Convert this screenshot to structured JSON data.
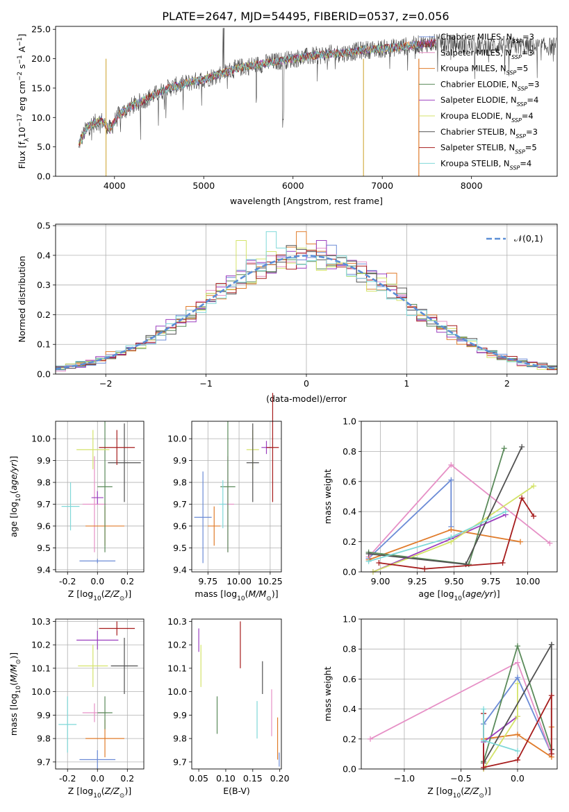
{
  "figure": {
    "title": "PLATE=2647, MJD=54495, FIBERID=0537, z=0.056",
    "colors": {
      "Chabrier MILES": "#6b8bd6",
      "Salpeter MILES": "#e690c6",
      "Kroupa MILES": "#e07b2a",
      "Chabrier ELODIE": "#5a8a5a",
      "Salpeter ELODIE": "#9b3fbf",
      "Kroupa ELODIE": "#d4e36a",
      "Chabrier STELIB": "#505050",
      "Salpeter STELIB": "#a61c1c",
      "Kroupa STELIB": "#7fd8d8"
    }
  },
  "chart_data": [
    {
      "id": "spectrum",
      "type": "line",
      "xlabel": "wavelength [Angstrom, rest frame]",
      "ylabel": "Flux [f_λ10^-17 erg cm^-2 s^-1 A^-1]",
      "xlim": [
        3340,
        8960
      ],
      "ylim": [
        0,
        25.5
      ],
      "xticks": [
        4000,
        5000,
        6000,
        7000,
        8000
      ],
      "yticks": [
        0,
        5,
        10,
        15,
        20,
        25
      ],
      "grid": false,
      "legend_placement": "top-right",
      "legend": [
        {
          "model": "Chabrier MILES",
          "nssp": "3"
        },
        {
          "model": "Salpeter MILES",
          "nssp": "3"
        },
        {
          "model": "Kroupa MILES",
          "nssp": "5"
        },
        {
          "model": "Chabrier ELODIE",
          "nssp": "3"
        },
        {
          "model": "Salpeter ELODIE",
          "nssp": "4"
        },
        {
          "model": "Kroupa ELODIE",
          "nssp": "4"
        },
        {
          "model": "Chabrier STELIB",
          "nssp": "3"
        },
        {
          "model": "Salpeter STELIB",
          "nssp": "5"
        },
        {
          "model": "Kroupa STELIB",
          "nssp": "4"
        }
      ],
      "continuum": [
        [
          3600,
          5.5
        ],
        [
          3700,
          8.5
        ],
        [
          3850,
          9.5
        ],
        [
          3950,
          8.0
        ],
        [
          4050,
          10.5
        ],
        [
          4200,
          12.0
        ],
        [
          4400,
          13.5
        ],
        [
          4600,
          15.0
        ],
        [
          4800,
          15.8
        ],
        [
          5000,
          16.5
        ],
        [
          5200,
          17.5
        ],
        [
          5400,
          18.5
        ],
        [
          5600,
          19.0
        ],
        [
          5800,
          19.5
        ],
        [
          6000,
          20.0
        ],
        [
          6200,
          20.4
        ],
        [
          6400,
          20.8
        ],
        [
          6600,
          21.0
        ],
        [
          6800,
          21.5
        ],
        [
          7000,
          21.7
        ],
        [
          7200,
          22.0
        ],
        [
          7400,
          22.4
        ],
        [
          7600,
          22.7
        ],
        [
          7800,
          22.5
        ],
        [
          8000,
          22.2
        ],
        [
          8200,
          22.2
        ],
        [
          8400,
          22.3
        ],
        [
          8700,
          22.0
        ],
        [
          8950,
          22.1
        ]
      ]
    },
    {
      "id": "residual-histogram",
      "type": "line",
      "xlabel": "(data-model)/error",
      "ylabel": "Normed distribution",
      "xlim": [
        -2.5,
        2.5
      ],
      "ylim": [
        0,
        0.505
      ],
      "xticks": [
        -2,
        -1,
        0,
        1,
        2
      ],
      "yticks": [
        0.0,
        0.1,
        0.2,
        0.3,
        0.4,
        0.5
      ],
      "grid": true,
      "legend_placement": "top-right",
      "legend": "𝒩(0,1)",
      "gaussian": {
        "mean": 0,
        "sigma": 1,
        "color": "#5b8ed6"
      },
      "bin_width": 0.1,
      "spiky_bins": {
        "-0.65": 0.45,
        "-0.35": 0.48,
        "-0.05": 0.48,
        "0.15": 0.45,
        "0.85": 0.34
      }
    },
    {
      "id": "age-vs-Z",
      "type": "scatter",
      "xlabel": "Z [log10(Z/Z⊙)]",
      "ylabel": "age  [log10(age/yr)]",
      "xlim": [
        -0.28,
        0.31
      ],
      "ylim": [
        9.39,
        10.08
      ],
      "xticks": [
        "-0.2",
        "0.0",
        "0.2"
      ],
      "xtick_values": [
        -0.2,
        0.0,
        0.2
      ],
      "yticks": [
        "9.4",
        "9.5",
        "9.6",
        "9.7",
        "9.8",
        "9.9",
        "10.0"
      ],
      "ytick_values": [
        9.4,
        9.5,
        9.6,
        9.7,
        9.8,
        9.9,
        10.0
      ],
      "grid": true,
      "points": [
        {
          "model": "Chabrier MILES",
          "x": 0.0,
          "xerr": 0.12,
          "y": 9.44,
          "yerr": 0.01
        },
        {
          "model": "Salpeter MILES",
          "x": -0.02,
          "xerr": 0.08,
          "y": 9.7,
          "yerr": 0.22
        },
        {
          "model": "Kroupa MILES",
          "x": 0.05,
          "xerr": 0.13,
          "y": 9.6,
          "yerr": 0.09
        },
        {
          "model": "Chabrier ELODIE",
          "x": 0.05,
          "xerr": 0.05,
          "y": 9.78,
          "yerr": 0.3
        },
        {
          "model": "Salpeter ELODIE",
          "x": 0.0,
          "xerr": 0.04,
          "y": 9.73,
          "yerr": 0.03
        },
        {
          "model": "Kroupa ELODIE",
          "x": -0.03,
          "xerr": 0.11,
          "y": 9.95,
          "yerr": 0.09
        },
        {
          "model": "Chabrier STELIB",
          "x": 0.18,
          "xerr": 0.11,
          "y": 9.89,
          "yerr": 0.18
        },
        {
          "model": "Salpeter STELIB",
          "x": 0.13,
          "xerr": 0.12,
          "y": 9.96,
          "yerr": 0.08
        },
        {
          "model": "Kroupa STELIB",
          "x": -0.18,
          "xerr": 0.06,
          "y": 9.69,
          "yerr": 0.11
        }
      ]
    },
    {
      "id": "age-vs-mass",
      "type": "scatter",
      "xlabel": "mass [log10(M/M⊙)]",
      "ylabel": "",
      "xlim": [
        9.62,
        10.34
      ],
      "ylim": [
        9.39,
        10.08
      ],
      "xticks": [
        "9.75",
        "10.00",
        "10.25"
      ],
      "xtick_values": [
        9.75,
        10.0,
        10.25
      ],
      "yticks": [
        "9.4",
        "9.5",
        "9.6",
        "9.7",
        "9.8",
        "9.9",
        "10.0"
      ],
      "ytick_values": [
        9.4,
        9.5,
        9.6,
        9.7,
        9.8,
        9.9,
        10.0
      ],
      "grid": true,
      "points": [
        {
          "model": "Chabrier MILES",
          "x": 9.71,
          "xerr": 0.07,
          "y": 9.64,
          "yerr": 0.21
        },
        {
          "model": "Salpeter MILES",
          "x": 9.91,
          "xerr": 0.05,
          "y": 9.7,
          "yerr": 0.22
        },
        {
          "model": "Kroupa MILES",
          "x": 9.8,
          "xerr": 0.05,
          "y": 9.6,
          "yerr": 0.09
        },
        {
          "model": "Chabrier ELODIE",
          "x": 9.91,
          "xerr": 0.06,
          "y": 9.78,
          "yerr": 0.3
        },
        {
          "model": "Salpeter ELODIE",
          "x": 10.22,
          "xerr": 0.04,
          "y": 9.96,
          "yerr": 0.03
        },
        {
          "model": "Kroupa ELODIE",
          "x": 10.11,
          "xerr": 0.05,
          "y": 9.95,
          "yerr": 0.09
        },
        {
          "model": "Chabrier STELIB",
          "x": 10.11,
          "xerr": 0.05,
          "y": 9.89,
          "yerr": 0.18
        },
        {
          "model": "Salpeter STELIB",
          "x": 10.27,
          "xerr": 0.05,
          "y": 9.96,
          "yerr": 0.25
        },
        {
          "model": "Kroupa STELIB",
          "x": 9.87,
          "xerr": 0.03,
          "y": 9.7,
          "yerr": 0.11
        }
      ]
    },
    {
      "id": "weight-vs-age",
      "type": "line",
      "xlabel": "age  [log10(age/yr)]",
      "ylabel": "mass weight",
      "xlim": [
        8.87,
        10.2
      ],
      "ylim": [
        0,
        1.0
      ],
      "xticks": [
        "9.00",
        "9.25",
        "9.50",
        "9.75",
        "10.00"
      ],
      "xtick_values": [
        9.0,
        9.25,
        9.5,
        9.75,
        10.0
      ],
      "yticks": [
        "0.0",
        "0.2",
        "0.4",
        "0.6",
        "0.8",
        "1.0"
      ],
      "ytick_values": [
        0.0,
        0.2,
        0.4,
        0.6,
        0.8,
        1.0
      ],
      "grid": true,
      "series": [
        {
          "model": "Chabrier MILES",
          "x": [
            8.92,
            9.48,
            9.48
          ],
          "y": [
            0.09,
            0.61,
            0.3
          ]
        },
        {
          "model": "Salpeter MILES",
          "x": [
            8.92,
            9.48,
            10.15
          ],
          "y": [
            0.1,
            0.71,
            0.19
          ]
        },
        {
          "model": "Kroupa MILES",
          "x": [
            8.92,
            9.48,
            9.95
          ],
          "y": [
            0.08,
            0.28,
            0.2
          ]
        },
        {
          "model": "Chabrier ELODIE",
          "x": [
            8.92,
            9.6,
            9.84
          ],
          "y": [
            0.13,
            0.05,
            0.82
          ]
        },
        {
          "model": "Salpeter ELODIE",
          "x": [
            8.95,
            9.48,
            9.85
          ],
          "y": [
            0.0,
            0.22,
            0.38
          ]
        },
        {
          "model": "Kroupa ELODIE",
          "x": [
            8.95,
            9.48,
            10.04
          ],
          "y": [
            0.0,
            0.2,
            0.57
          ]
        },
        {
          "model": "Chabrier STELIB",
          "x": [
            8.92,
            9.58,
            9.96
          ],
          "y": [
            0.12,
            0.05,
            0.83
          ]
        },
        {
          "model": "Salpeter STELIB",
          "x": [
            8.99,
            9.3,
            9.83,
            9.96,
            10.04
          ],
          "y": [
            0.06,
            0.02,
            0.06,
            0.49,
            0.37
          ]
        },
        {
          "model": "Kroupa STELIB",
          "x": [
            8.92,
            9.48,
            9.85
          ],
          "y": [
            0.07,
            0.23,
            0.4
          ]
        }
      ]
    },
    {
      "id": "mass-vs-Z",
      "type": "scatter",
      "xlabel": "Z [log10(Z/Z⊙)]",
      "ylabel": "mass [log10(M/M⊙)]",
      "xlim": [
        -0.28,
        0.31
      ],
      "ylim": [
        9.67,
        10.31
      ],
      "xticks": [
        "-0.2",
        "0.0",
        "0.2"
      ],
      "xtick_values": [
        -0.2,
        0.0,
        0.2
      ],
      "yticks": [
        "9.7",
        "9.8",
        "9.9",
        "10.0",
        "10.1",
        "10.2",
        "10.3"
      ],
      "ytick_values": [
        9.7,
        9.8,
        9.9,
        10.0,
        10.1,
        10.2,
        10.3
      ],
      "grid": true,
      "points": [
        {
          "model": "Chabrier MILES",
          "x": 0.0,
          "xerr": 0.12,
          "y": 9.71,
          "yerr": 0.04
        },
        {
          "model": "Salpeter MILES",
          "x": -0.02,
          "xerr": 0.08,
          "y": 9.91,
          "yerr": 0.04
        },
        {
          "model": "Kroupa MILES",
          "x": 0.05,
          "xerr": 0.13,
          "y": 9.8,
          "yerr": 0.08
        },
        {
          "model": "Chabrier ELODIE",
          "x": 0.05,
          "xerr": 0.05,
          "y": 9.91,
          "yerr": 0.07
        },
        {
          "model": "Salpeter ELODIE",
          "x": 0.0,
          "xerr": 0.14,
          "y": 10.22,
          "yerr": 0.04
        },
        {
          "model": "Kroupa ELODIE",
          "x": -0.03,
          "xerr": 0.1,
          "y": 10.11,
          "yerr": 0.09
        },
        {
          "model": "Chabrier STELIB",
          "x": 0.18,
          "xerr": 0.09,
          "y": 10.11,
          "yerr": 0.12
        },
        {
          "model": "Salpeter STELIB",
          "x": 0.13,
          "xerr": 0.12,
          "y": 10.27,
          "yerr": 0.03
        },
        {
          "model": "Kroupa STELIB",
          "x": -0.2,
          "xerr": 0.06,
          "y": 9.86,
          "yerr": 0.12
        }
      ]
    },
    {
      "id": "mass-vs-ebv",
      "type": "scatter",
      "xlabel": "E(B-V)",
      "ylabel": "",
      "xlim": [
        0.037,
        0.203
      ],
      "ylim": [
        9.67,
        10.31
      ],
      "xticks": [
        "0.05",
        "0.10",
        "0.15",
        "0.20"
      ],
      "xtick_values": [
        0.05,
        0.1,
        0.15,
        0.2
      ],
      "yticks": [
        "9.7",
        "9.8",
        "9.9",
        "10.0",
        "10.1",
        "10.2",
        "10.3"
      ],
      "ytick_values": [
        9.7,
        9.8,
        9.9,
        10.0,
        10.1,
        10.2,
        10.3
      ],
      "grid": false,
      "points": [
        {
          "model": "Chabrier MILES",
          "x": 0.199,
          "xerr": 0.0,
          "y": 9.71,
          "yerr": 0.03
        },
        {
          "model": "Salpeter MILES",
          "x": 0.185,
          "xerr": 0.0,
          "y": 9.91,
          "yerr": 0.1
        },
        {
          "model": "Kroupa MILES",
          "x": 0.196,
          "xerr": 0.0,
          "y": 9.8,
          "yerr": 0.09
        },
        {
          "model": "Chabrier ELODIE",
          "x": 0.084,
          "xerr": 0.0,
          "y": 9.9,
          "yerr": 0.08
        },
        {
          "model": "Salpeter ELODIE",
          "x": 0.05,
          "xerr": 0.0,
          "y": 10.22,
          "yerr": 0.05
        },
        {
          "model": "Kroupa ELODIE",
          "x": 0.054,
          "xerr": 0.0,
          "y": 10.11,
          "yerr": 0.09
        },
        {
          "model": "Chabrier STELIB",
          "x": 0.168,
          "xerr": 0.0,
          "y": 10.06,
          "yerr": 0.07
        },
        {
          "model": "Salpeter STELIB",
          "x": 0.127,
          "xerr": 0.0,
          "y": 10.2,
          "yerr": 0.1
        },
        {
          "model": "Kroupa STELIB",
          "x": 0.158,
          "xerr": 0.0,
          "y": 9.88,
          "yerr": 0.08
        }
      ]
    },
    {
      "id": "weight-vs-Z",
      "type": "line",
      "xlabel": "Z [log10(Z/Z⊙)]",
      "ylabel": "mass weight",
      "xlim": [
        -1.38,
        0.35
      ],
      "ylim": [
        0,
        1.0
      ],
      "xticks": [
        "−1.0",
        "−0.5",
        "0.0"
      ],
      "xtick_values": [
        -1.0,
        -0.5,
        0.0
      ],
      "yticks": [
        "0.0",
        "0.2",
        "0.4",
        "0.6",
        "0.8",
        "1.0"
      ],
      "ytick_values": [
        0.0,
        0.2,
        0.4,
        0.6,
        0.8,
        1.0
      ],
      "grid": true,
      "series": [
        {
          "model": "Chabrier MILES",
          "x": [
            -0.3,
            0.0,
            0.3
          ],
          "y": [
            0.3,
            0.61,
            0.1
          ]
        },
        {
          "model": "Salpeter MILES",
          "x": [
            -1.3,
            0.0,
            0.3
          ],
          "y": [
            0.2,
            0.71,
            0.1
          ]
        },
        {
          "model": "Kroupa MILES",
          "x": [
            -0.3,
            0.0,
            0.3,
            0.3
          ],
          "y": [
            0.2,
            0.23,
            0.08,
            0.28
          ]
        },
        {
          "model": "Chabrier ELODIE",
          "x": [
            -0.3,
            0.0,
            0.3
          ],
          "y": [
            0.05,
            0.82,
            0.13
          ]
        },
        {
          "model": "Salpeter ELODIE",
          "x": [
            -0.3,
            -0.3,
            0.0
          ],
          "y": [
            0.0,
            0.18,
            0.35
          ]
        },
        {
          "model": "Kroupa ELODIE",
          "x": [
            -0.3,
            0.0,
            0.0
          ],
          "y": [
            0.0,
            0.35,
            0.57
          ]
        },
        {
          "model": "Chabrier STELIB",
          "x": [
            -0.3,
            0.3,
            0.3
          ],
          "y": [
            0.04,
            0.83,
            0.13
          ]
        },
        {
          "model": "Salpeter STELIB",
          "x": [
            -0.3,
            -0.3,
            0.0,
            0.3,
            0.3
          ],
          "y": [
            0.37,
            0.01,
            0.06,
            0.49,
            0.1
          ]
        },
        {
          "model": "Kroupa STELIB",
          "x": [
            -0.3,
            -0.3,
            0.0
          ],
          "y": [
            0.4,
            0.19,
            0.12
          ]
        }
      ]
    }
  ]
}
